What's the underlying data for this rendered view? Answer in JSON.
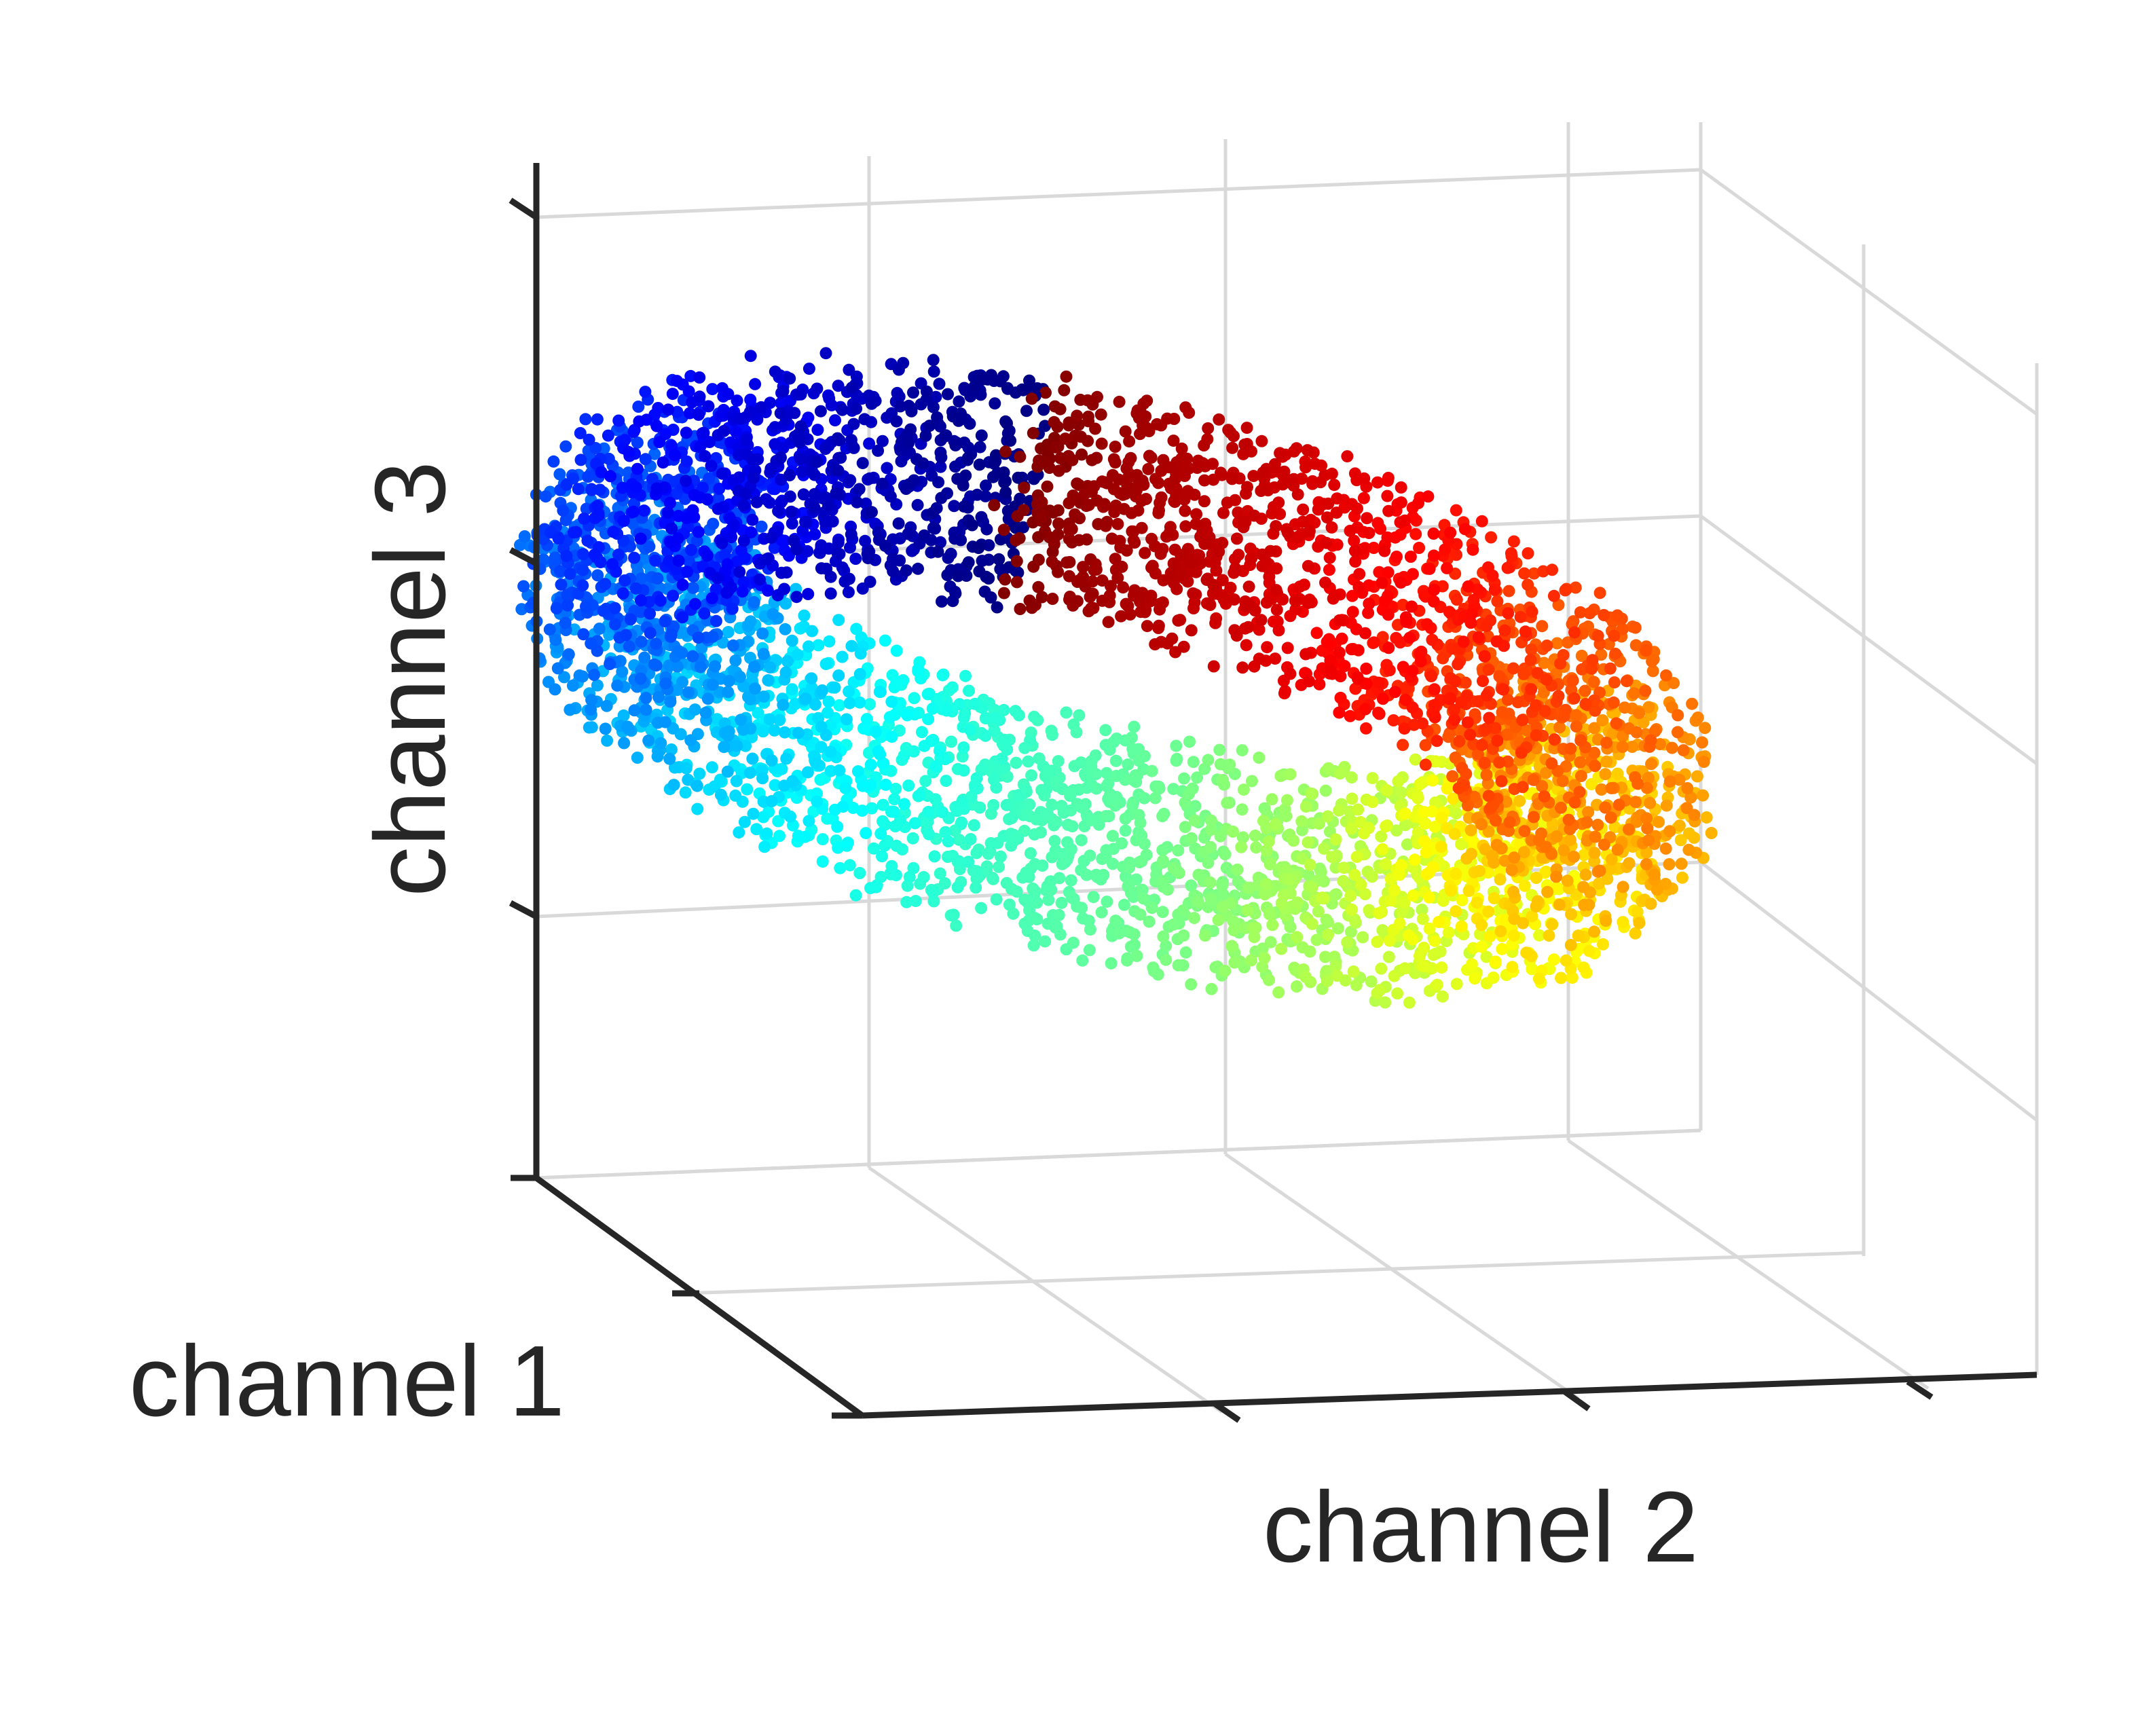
{
  "chart_data": {
    "type": "scatter",
    "dimensions": 3,
    "title": "",
    "xlabel": "channel 1",
    "ylabel": "channel 2",
    "zlabel": "channel 3",
    "tick_labels_visible": false,
    "grid": true,
    "colormap": "jet",
    "colorbar": false,
    "legend": null,
    "point_count_approx": 5000,
    "colors": {
      "axis": "#262626",
      "grid": "#d9d9d9",
      "background": "#ffffff"
    },
    "series": [
      {
        "shape": "torus",
        "color_by": "angle around torus ring (jet colormap)",
        "major_radius": 1.0,
        "minor_radius": 0.25,
        "center": [
          0,
          0,
          0
        ]
      }
    ]
  }
}
